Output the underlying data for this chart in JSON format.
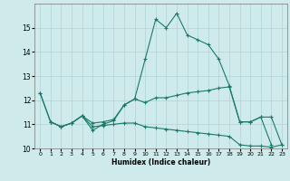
{
  "title": "",
  "xlabel": "Humidex (Indice chaleur)",
  "background_color": "#ceeaea",
  "grid_color": "#aed4d4",
  "line_color": "#1a7a6a",
  "xlim": [
    -0.5,
    23.5
  ],
  "ylim": [
    10,
    16
  ],
  "yticks": [
    10,
    11,
    12,
    13,
    14,
    15
  ],
  "xticks": [
    0,
    1,
    2,
    3,
    4,
    5,
    6,
    7,
    8,
    9,
    10,
    11,
    12,
    13,
    14,
    15,
    16,
    17,
    18,
    19,
    20,
    21,
    22,
    23
  ],
  "series1_x": [
    0,
    1,
    2,
    3,
    4,
    5,
    6,
    7,
    8,
    9,
    10,
    11,
    12,
    13,
    14,
    15,
    16,
    17,
    18,
    19,
    20,
    21,
    22
  ],
  "series1_y": [
    12.3,
    11.1,
    10.9,
    11.05,
    11.35,
    10.75,
    11.0,
    11.15,
    11.8,
    12.05,
    13.7,
    15.35,
    15.0,
    15.6,
    14.7,
    14.5,
    14.3,
    13.7,
    12.6,
    11.1,
    11.1,
    11.3,
    10.15
  ],
  "series2_x": [
    1,
    2,
    3,
    4,
    5,
    6,
    7,
    8,
    9,
    10,
    11,
    12,
    13,
    14,
    15,
    16,
    17,
    18,
    19,
    20,
    21,
    22,
    23
  ],
  "series2_y": [
    11.1,
    10.9,
    11.05,
    11.35,
    10.9,
    10.95,
    11.0,
    11.05,
    11.05,
    10.9,
    10.85,
    10.8,
    10.75,
    10.7,
    10.65,
    10.6,
    10.55,
    10.5,
    10.15,
    10.1,
    10.1,
    10.05,
    10.15
  ],
  "series3_x": [
    0,
    1,
    2,
    3,
    4,
    5,
    6,
    7,
    8,
    9,
    10,
    11,
    12,
    13,
    14,
    15,
    16,
    17,
    18,
    19,
    20,
    21,
    22,
    23
  ],
  "series3_y": [
    12.3,
    11.1,
    10.9,
    11.05,
    11.35,
    11.05,
    11.1,
    11.2,
    11.8,
    12.05,
    11.9,
    12.1,
    12.1,
    12.2,
    12.3,
    12.35,
    12.4,
    12.5,
    12.55,
    11.1,
    11.1,
    11.3,
    11.3,
    10.15
  ]
}
